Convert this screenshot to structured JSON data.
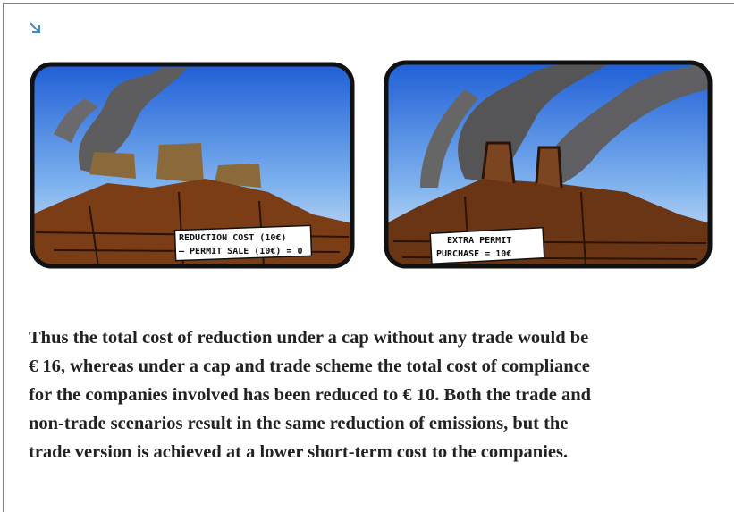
{
  "panels": [
    {
      "caption": [
        "REDUCTION COST (10€)",
        "– PERMIT SALE (10€) = 0"
      ]
    },
    {
      "caption": [
        "EXTRA PERMIT",
        "PURCHASE = 10€"
      ]
    }
  ],
  "paragraph": [
    "Thus the total cost of reduction under a cap without any trade would be",
    "€ 16, whereas under a cap and trade scheme the total cost of compliance",
    "for the companies involved has been reduced to € 10. Both the trade and",
    "non-trade scenarios result in the same reduction of emissions, but the",
    "trade version is achieved at a lower short-term cost to the companies."
  ]
}
